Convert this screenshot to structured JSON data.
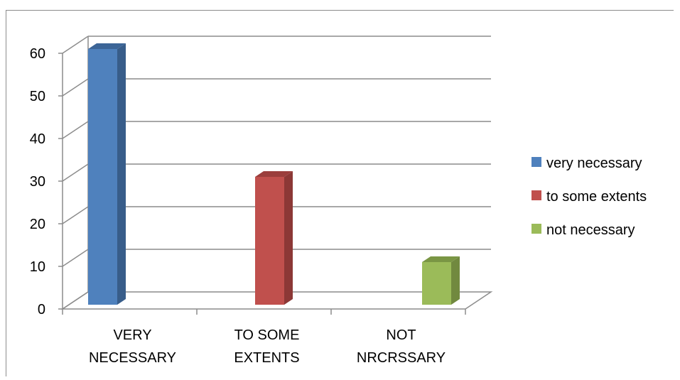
{
  "chart_data": {
    "type": "bar",
    "style": "3d-column",
    "categories": [
      [
        "VERY",
        "NECESSARY"
      ],
      [
        "TO SOME",
        "EXTENTS"
      ],
      [
        "NOT",
        "NRCRSSARY"
      ]
    ],
    "series": [
      {
        "name": "very necessary",
        "color": "#4F81BD",
        "side_color": "#385D8A",
        "top_color": "#3C6597",
        "values": [
          60,
          null,
          null
        ]
      },
      {
        "name": "to some extents",
        "color": "#C0504D",
        "side_color": "#8C3836",
        "top_color": "#9B3E3C",
        "values": [
          null,
          30,
          null
        ]
      },
      {
        "name": "not necessary",
        "color": "#9BBB59",
        "side_color": "#71893F",
        "top_color": "#7A9644",
        "values": [
          null,
          null,
          10
        ]
      }
    ],
    "ylim": [
      0,
      60
    ],
    "yticks": [
      0,
      10,
      20,
      30,
      40,
      50,
      60
    ],
    "grid": true,
    "legend": "right",
    "xlabel": "",
    "ylabel": "",
    "title": ""
  }
}
